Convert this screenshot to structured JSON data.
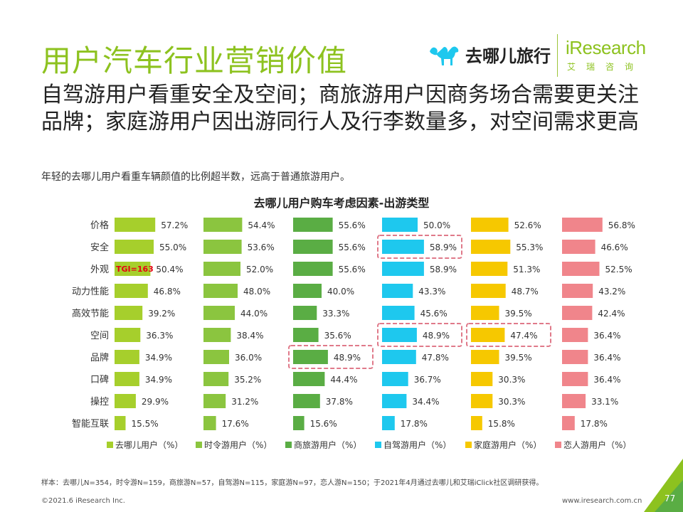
{
  "header": {
    "title": "用户汽车行业营销价值",
    "headline": "自驾游用户看重安全及空间；商旅游用户因商务场合需要更关注品牌；家庭游用户因出游同行人及行李数量多，对空间需求更高",
    "subtitle": "年轻的去哪儿用户看重车辆颜值的比例超半数，远高于普通旅游用户。"
  },
  "brands": {
    "qunar": "去哪儿旅行",
    "iresearch": "iResearch",
    "iresearch_cn": "艾瑞咨询"
  },
  "chart_data": {
    "type": "bar",
    "title": "去哪儿用户购车考虑因素-出游类型",
    "categories": [
      "价格",
      "安全",
      "外观",
      "动力性能",
      "高效节能",
      "空间",
      "品牌",
      "口碑",
      "操控",
      "智能互联"
    ],
    "series": [
      {
        "name": "去哪儿用户（%）",
        "color": "#a6cf2c",
        "values": [
          57.2,
          55.0,
          50.4,
          46.8,
          39.2,
          36.3,
          34.9,
          34.9,
          29.9,
          15.5
        ]
      },
      {
        "name": "时令游用户（%）",
        "color": "#8bc53f",
        "values": [
          54.4,
          53.6,
          52.0,
          48.0,
          44.0,
          38.4,
          36.0,
          35.2,
          31.2,
          17.6
        ]
      },
      {
        "name": "商旅游用户（%）",
        "color": "#5aad44",
        "values": [
          55.6,
          55.6,
          55.6,
          40.0,
          33.3,
          35.6,
          48.9,
          44.4,
          37.8,
          15.6
        ]
      },
      {
        "name": "自驾游用户（%）",
        "color": "#1ec8ee",
        "values": [
          50.0,
          58.9,
          58.9,
          43.3,
          45.6,
          48.9,
          47.8,
          36.7,
          34.4,
          17.8
        ]
      },
      {
        "name": "家庭游用户（%）",
        "color": "#f6c800",
        "values": [
          52.6,
          55.3,
          51.3,
          48.7,
          39.5,
          47.4,
          39.5,
          30.3,
          30.3,
          15.8
        ]
      },
      {
        "name": "恋人游用户（%）",
        "color": "#f0858b",
        "values": [
          56.8,
          46.6,
          52.5,
          43.2,
          42.4,
          36.4,
          36.4,
          36.4,
          33.1,
          17.8
        ]
      }
    ],
    "value_labels": [
      [
        "57.2%",
        "55.0%",
        "50.4%",
        "46.8%",
        "39.2%",
        "36.3%",
        "34.9%",
        "34.9%",
        "29.9%",
        "15.5%"
      ],
      [
        "54.4%",
        "53.6%",
        "52.0%",
        "48.0%",
        "44.0%",
        "38.4%",
        "36.0%",
        "35.2%",
        "31.2%",
        "17.6%"
      ],
      [
        "55.6%",
        "55.6%",
        "55.6%",
        "40.0%",
        "33.3%",
        "35.6%",
        "48.9%",
        "44.4%",
        "37.8%",
        "15.6%"
      ],
      [
        "50.0%",
        "58.9%",
        "58.9%",
        "43.3%",
        "45.6%",
        "48.9%",
        "47.8%",
        "36.7%",
        "34.4%",
        "17.8%"
      ],
      [
        "52.6%",
        "55.3%",
        "51.3%",
        "48.7%",
        "39.5%",
        "47.4%",
        "39.5%",
        "30.3%",
        "30.3%",
        "15.8%"
      ],
      [
        "56.8%",
        "46.6%",
        "52.5%",
        "43.2%",
        "42.4%",
        "36.4%",
        "36.4%",
        "36.4%",
        "33.1%",
        "17.8%"
      ]
    ],
    "annotation": {
      "text": "TGI=163",
      "series": 0,
      "category": 2,
      "color": "#e60012"
    },
    "highlights": [
      {
        "series": 3,
        "category": 1
      },
      {
        "series": 2,
        "category": 6
      },
      {
        "series": 3,
        "category": 5
      },
      {
        "series": 4,
        "category": 5
      }
    ],
    "legend_position": "bottom",
    "grid": false
  },
  "footer": {
    "note": "样本：去哪儿N=354，时令游N=159，商旅游N=57，自驾游N=115，家庭游N=97，恋人游N=150；于2021年4月通过去哪儿和艾瑞iClick社区调研获得。",
    "copyright": "©2021.6 iResearch Inc.",
    "website": "www.iresearch.com.cn",
    "page": "77"
  },
  "colors": {
    "accent": "#8dc21f",
    "highlight_border": "#e07a8a"
  }
}
